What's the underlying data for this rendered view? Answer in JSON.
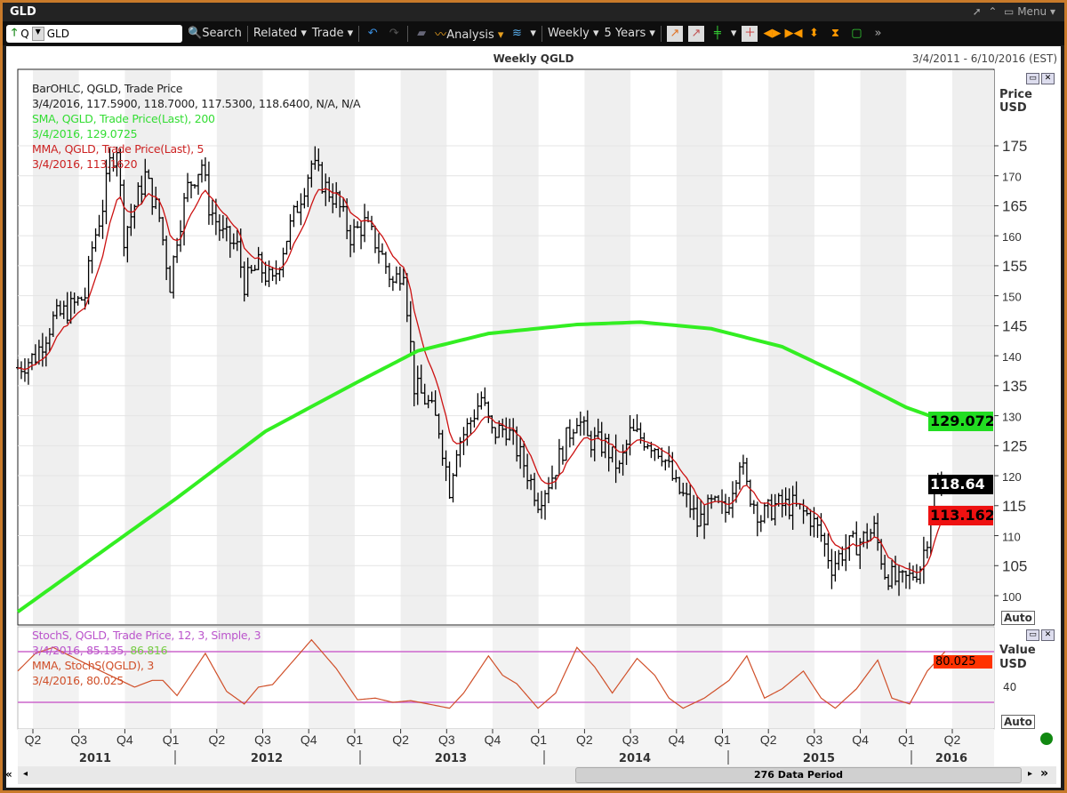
{
  "window": {
    "title": "GLD",
    "menu": "Menu"
  },
  "toolbar": {
    "symbol_prefix": "Q",
    "symbol": "GLD",
    "search": "Search",
    "related": "Related",
    "trade": "Trade",
    "analysis": "Analysis",
    "period": "Weekly",
    "range": "5 Years"
  },
  "chart": {
    "title": "Weekly QGLD",
    "date_range": "3/4/2011 - 6/10/2016 (EST)",
    "data_period": "276 Data Period"
  },
  "legend": {
    "bar_title": "BarOHLC, QGLD, Trade Price",
    "bar_values": "3/4/2016, 117.5900, 118.7000, 117.5300, 118.6400, N/A, N/A",
    "sma_title": "SMA, QGLD, Trade Price(Last),  200",
    "sma_value": "3/4/2016, 129.0725",
    "mma_title": "MMA, QGLD, Trade Price(Last),  5",
    "mma_value": "3/4/2016, 113.1620",
    "stoch_title": "StochS, QGLD, Trade Price,  12, 3, Simple, 3",
    "stoch_value_a": "3/4/2016, 85.135, ",
    "stoch_value_b": "86.816",
    "stoch_mma_title": "MMA, StochS(QGLD),  3",
    "stoch_mma_value": "3/4/2016, 80.025"
  },
  "price_axis": {
    "title1": "Price",
    "title2": "USD",
    "ticks": [
      100,
      105,
      110,
      115,
      120,
      125,
      130,
      135,
      140,
      145,
      150,
      155,
      160,
      165,
      170,
      175
    ],
    "auto": "Auto",
    "badges": {
      "sma": "129.072",
      "last": "118.64",
      "mma": "113.162"
    }
  },
  "stoch_axis": {
    "title1": "Value",
    "title2": "USD",
    "tick": "40",
    "badge": "80.025",
    "auto": "Auto"
  },
  "x_axis": {
    "quarters": [
      "Q2",
      "Q3",
      "Q4",
      "Q1",
      "Q2",
      "Q3",
      "Q4",
      "Q1",
      "Q2",
      "Q3",
      "Q4",
      "Q1",
      "Q2",
      "Q3",
      "Q4",
      "Q1",
      "Q2",
      "Q3",
      "Q4",
      "Q1",
      "Q2"
    ],
    "years": [
      "2011",
      "2012",
      "2013",
      "2014",
      "2015",
      "2016"
    ]
  },
  "colors": {
    "sma": "#33ee22",
    "mma": "#cc1111",
    "stoch": "#cc66cc",
    "stoch_mma": "#d0502a",
    "price_bar": "#000000"
  },
  "chart_data": {
    "type": "ohlc-line",
    "x_unit": "week index from 3/4/2011",
    "ylim": [
      97,
      178
    ],
    "close_keypoints": [
      [
        0,
        138
      ],
      [
        5,
        140
      ],
      [
        10,
        146
      ],
      [
        15,
        148
      ],
      [
        19,
        150
      ],
      [
        21,
        158
      ],
      [
        24,
        165
      ],
      [
        26,
        172
      ],
      [
        28,
        175
      ],
      [
        30,
        160
      ],
      [
        33,
        165
      ],
      [
        36,
        170
      ],
      [
        40,
        163
      ],
      [
        43,
        152
      ],
      [
        45,
        160
      ],
      [
        48,
        168
      ],
      [
        52,
        172
      ],
      [
        54,
        165
      ],
      [
        58,
        160
      ],
      [
        62,
        158
      ],
      [
        64,
        152
      ],
      [
        68,
        155
      ],
      [
        72,
        152
      ],
      [
        75,
        158
      ],
      [
        79,
        165
      ],
      [
        83,
        172
      ],
      [
        87,
        168
      ],
      [
        90,
        166
      ],
      [
        94,
        160
      ],
      [
        98,
        162
      ],
      [
        102,
        158
      ],
      [
        106,
        152
      ],
      [
        109,
        155
      ],
      [
        112,
        135
      ],
      [
        116,
        132
      ],
      [
        119,
        128
      ],
      [
        122,
        118
      ],
      [
        124,
        125
      ],
      [
        127,
        128
      ],
      [
        131,
        133
      ],
      [
        134,
        127
      ],
      [
        138,
        128
      ],
      [
        143,
        122
      ],
      [
        147,
        116
      ],
      [
        151,
        120
      ],
      [
        155,
        126
      ],
      [
        158,
        130
      ],
      [
        161,
        126
      ],
      [
        166,
        125
      ],
      [
        170,
        121
      ],
      [
        173,
        127
      ],
      [
        178,
        126
      ],
      [
        182,
        124
      ],
      [
        186,
        118
      ],
      [
        190,
        115
      ],
      [
        192,
        112
      ],
      [
        196,
        115
      ],
      [
        200,
        114
      ],
      [
        204,
        123
      ],
      [
        206,
        118
      ],
      [
        210,
        113
      ],
      [
        214,
        115
      ],
      [
        219,
        115
      ],
      [
        224,
        113
      ],
      [
        227,
        110
      ],
      [
        230,
        105
      ],
      [
        234,
        108
      ],
      [
        238,
        109
      ],
      [
        242,
        111
      ],
      [
        245,
        104
      ],
      [
        249,
        102
      ],
      [
        252,
        103
      ],
      [
        255,
        105
      ],
      [
        257,
        110
      ],
      [
        259,
        117
      ],
      [
        262,
        118.64
      ]
    ],
    "sma200_keypoints": [
      [
        0,
        97.3
      ],
      [
        45,
        116.3
      ],
      [
        70,
        127.4
      ],
      [
        95,
        135.3
      ],
      [
        113,
        140.8
      ],
      [
        133,
        143.7
      ],
      [
        158,
        145.2
      ],
      [
        176,
        145.6
      ],
      [
        196,
        144.5
      ],
      [
        216,
        141.5
      ],
      [
        236,
        135.9
      ],
      [
        251,
        131.4
      ],
      [
        262,
        129.07
      ]
    ],
    "stoch_mma_keypoints": [
      [
        0,
        57
      ],
      [
        5,
        78
      ],
      [
        10,
        85
      ],
      [
        22,
        60
      ],
      [
        33,
        38
      ],
      [
        38,
        46
      ],
      [
        41,
        46
      ],
      [
        45,
        28
      ],
      [
        53,
        78
      ],
      [
        59,
        33
      ],
      [
        64,
        18
      ],
      [
        68,
        38
      ],
      [
        72,
        41
      ],
      [
        83,
        94
      ],
      [
        90,
        60
      ],
      [
        96,
        23
      ],
      [
        101,
        25
      ],
      [
        106,
        20
      ],
      [
        111,
        22
      ],
      [
        116,
        18
      ],
      [
        122,
        13
      ],
      [
        126,
        31
      ],
      [
        133,
        75
      ],
      [
        137,
        52
      ],
      [
        141,
        42
      ],
      [
        147,
        13
      ],
      [
        152,
        31
      ],
      [
        158,
        85
      ],
      [
        163,
        62
      ],
      [
        168,
        31
      ],
      [
        175,
        72
      ],
      [
        180,
        52
      ],
      [
        184,
        25
      ],
      [
        188,
        13
      ],
      [
        194,
        25
      ],
      [
        201,
        46
      ],
      [
        206,
        75
      ],
      [
        211,
        25
      ],
      [
        216,
        36
      ],
      [
        222,
        57
      ],
      [
        227,
        25
      ],
      [
        231,
        13
      ],
      [
        237,
        36
      ],
      [
        243,
        70
      ],
      [
        247,
        25
      ],
      [
        252,
        18
      ],
      [
        257,
        57
      ],
      [
        262,
        80
      ]
    ],
    "stoch_levels": [
      80,
      20
    ]
  }
}
